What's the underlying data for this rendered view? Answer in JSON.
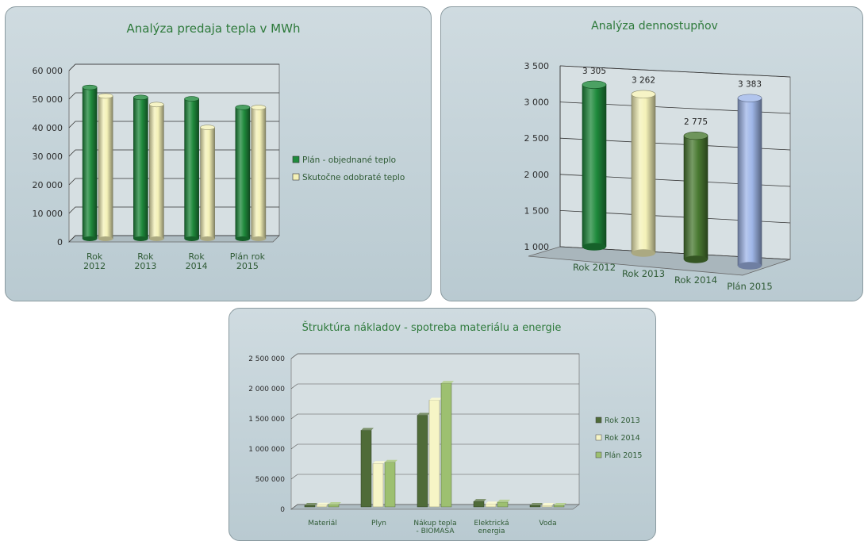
{
  "chart_data": [
    {
      "type": "bar",
      "title": "Analýza predaja tepla v MWh",
      "categories": [
        [
          "Rok",
          "2012"
        ],
        [
          "Rok",
          "2013"
        ],
        [
          "Rok",
          "2014"
        ],
        [
          "Plán rok",
          "2015"
        ]
      ],
      "series": [
        {
          "name": "Plán - objednané teplo",
          "values": [
            53000,
            49500,
            49000,
            46000
          ],
          "color": "#1f8a3c"
        },
        {
          "name": "Skutočne odobraté teplo",
          "values": [
            50000,
            47000,
            39000,
            46000
          ],
          "color": "#f4f1b8"
        }
      ],
      "ylim": [
        0,
        60000
      ],
      "yticks": [
        "0",
        "10 000",
        "20 000",
        "30 000",
        "40 000",
        "50 000",
        "60 000"
      ],
      "legend": "right"
    },
    {
      "type": "bar",
      "title": "Analýza dennostupňov",
      "categories": [
        [
          "Rok 2012"
        ],
        [
          "Rok 2013"
        ],
        [
          "Rok 2014"
        ],
        [
          "Plán 2015"
        ]
      ],
      "series": [
        {
          "name": "",
          "values": [
            3305,
            3262,
            2775,
            3383
          ],
          "labels": [
            "3 305",
            "3 262",
            "2 775",
            "3 383"
          ],
          "colors": [
            "#1f8a3c",
            "#f4f1b8",
            "#4a7a32",
            "#9fb6e8"
          ]
        }
      ],
      "ylim": [
        1000,
        3500
      ],
      "yticks": [
        "1 000",
        "1 500",
        "2 000",
        "2 500",
        "3 000",
        "3 500"
      ]
    },
    {
      "type": "bar",
      "title": "Štruktúra nákladov - spotreba materiálu a energie",
      "categories": [
        [
          "Materiál"
        ],
        [
          "Plyn"
        ],
        [
          "Nákup tepla",
          "- BIOMASA"
        ],
        [
          "Elektrická",
          "energia"
        ],
        [
          "Voda"
        ]
      ],
      "series": [
        {
          "name": "Rok 2013",
          "values": [
            20000,
            1270000,
            1520000,
            90000,
            10000
          ],
          "color": "#4f6b38"
        },
        {
          "name": "Rok 2014",
          "values": [
            30000,
            720000,
            1770000,
            50000,
            8000
          ],
          "color": "#f6f5c6"
        },
        {
          "name": "Plán 2015",
          "values": [
            40000,
            740000,
            2050000,
            80000,
            8000
          ],
          "color": "#9dc070"
        }
      ],
      "ylim": [
        0,
        2500000
      ],
      "yticks": [
        "0",
        "500 000",
        "1 000 000",
        "1 500 000",
        "2 000 000",
        "2 500 000"
      ],
      "legend": "right"
    }
  ]
}
